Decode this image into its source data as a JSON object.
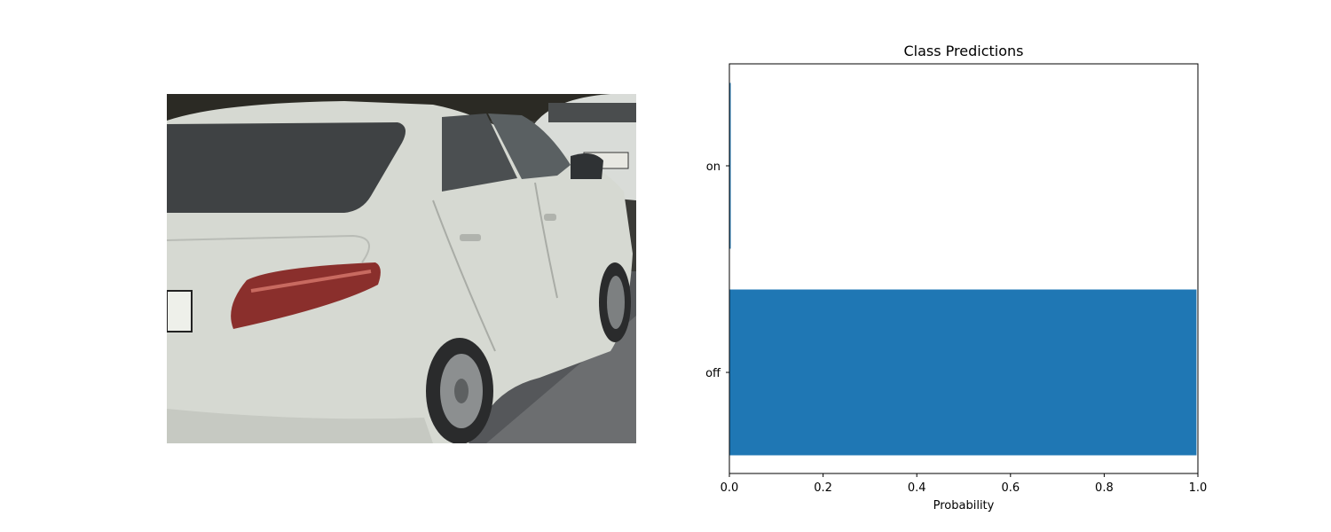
{
  "chart_data": {
    "type": "bar",
    "orientation": "horizontal",
    "title": "Class Predictions",
    "xlabel": "Probability",
    "ylabel": "",
    "categories": [
      "on",
      "off"
    ],
    "values": [
      0.002,
      0.997
    ],
    "xlim": [
      0,
      1
    ],
    "xticks": [
      "0.0",
      "0.2",
      "0.4",
      "0.6",
      "0.8",
      "1.0"
    ],
    "grid": false,
    "bar_color": "#1f77b4",
    "legend": "none"
  },
  "image_panel": {
    "description_icon": "car-photo"
  }
}
